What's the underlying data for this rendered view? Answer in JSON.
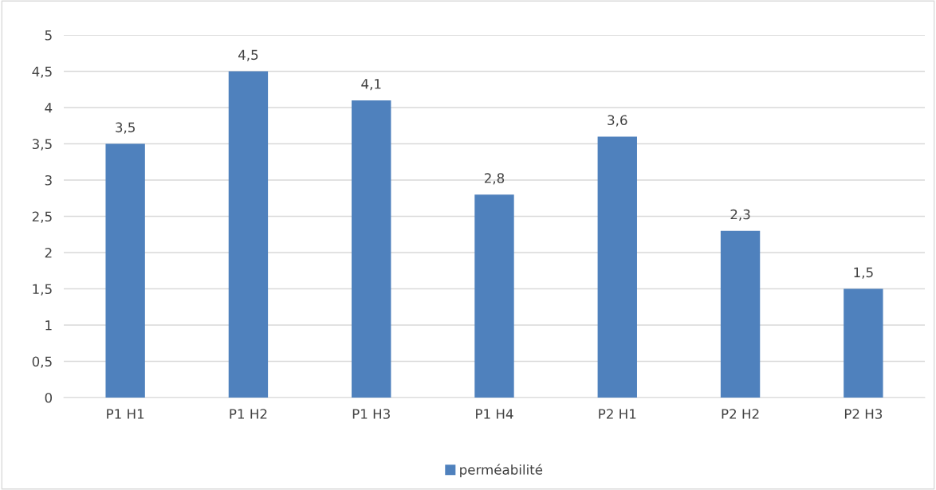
{
  "chart_data": {
    "type": "bar",
    "categories": [
      "P1 H1",
      "P1 H2",
      "P1 H3",
      "P1 H4",
      "P2 H1",
      "P2 H2",
      "P2 H3"
    ],
    "series": [
      {
        "name": "perméabilité",
        "color": "#4f81bd",
        "values": [
          3.5,
          4.5,
          4.1,
          2.8,
          3.6,
          2.3,
          1.5
        ],
        "value_labels": [
          "3,5",
          "4,5",
          "4,1",
          "2,8",
          "3,6",
          "2,3",
          "1,5"
        ]
      }
    ],
    "ylim": [
      0,
      5
    ],
    "yticks": [
      0,
      {
        "value": 0.5,
        "label": "0,5"
      },
      1,
      {
        "value": 1.5,
        "label": "1,5"
      },
      2,
      {
        "value": 2.5,
        "label": "2,5"
      },
      3,
      {
        "value": 3.5,
        "label": "3,5"
      },
      4,
      {
        "value": 4.5,
        "label": "4,5"
      },
      5
    ],
    "grid": "y",
    "legend": "bottom"
  }
}
